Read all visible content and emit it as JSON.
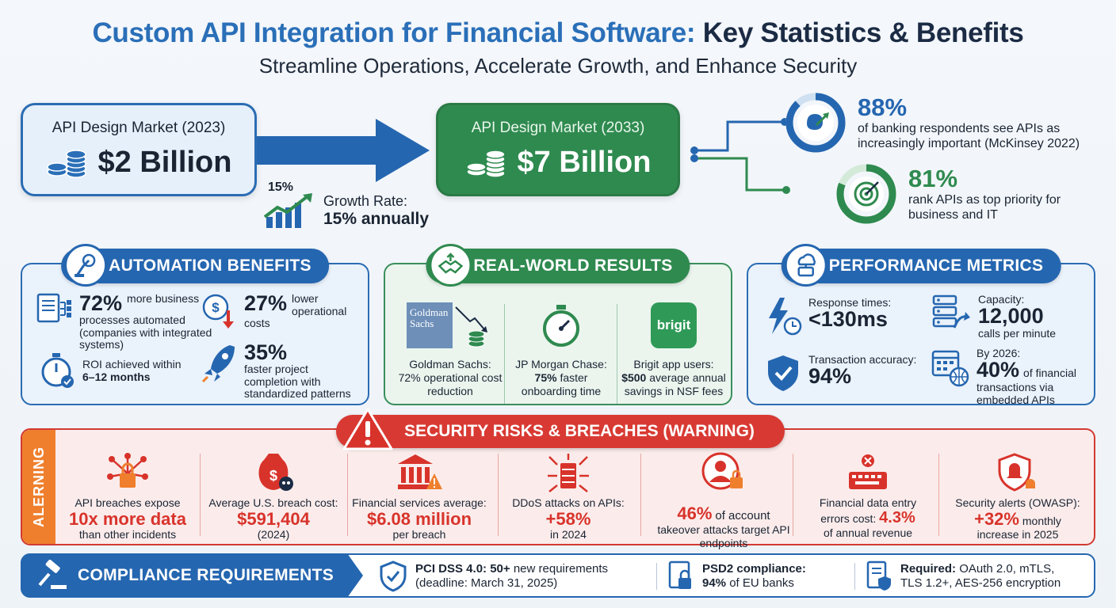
{
  "header": {
    "title_part1": "Custom API Integration for Financial Software:",
    "title_part2": "Key Statistics & Benefits",
    "subtitle": "Streamline Operations, Accelerate Growth, and Enhance Security"
  },
  "market": {
    "left_label": "API Design Market (2023)",
    "left_value": "$2 Billion",
    "right_label": "API Design Market (2033)",
    "right_value": "$7 Billion",
    "growth_pct": "15%",
    "growth_label": "Growth Rate:",
    "growth_value": "15% annually"
  },
  "ring_stats": [
    {
      "value": "88%",
      "desc": "of banking respondents see APIs as increasingly important (McKinsey 2022)",
      "fraction": 0.88
    },
    {
      "value": "81%",
      "desc": "rank APIs as top priority for business and IT",
      "fraction": 0.81
    }
  ],
  "automation": {
    "title": "AUTOMATION BENEFITS",
    "m1_value": "72%",
    "m1_text_a": "more business",
    "m1_text_b": "processes automated (companies with integrated systems)",
    "m2_value": "27%",
    "m2_text_a": "lower operational",
    "m2_text_b": "costs",
    "m3_text": "ROI achieved within",
    "m3_value": "6–12 months",
    "m4_value": "35%",
    "m4_text": "faster project completion with standardized patterns"
  },
  "real_world": {
    "title": "REAL-WORLD RESULTS",
    "goldman_logo": "Goldman Sachs",
    "col1_a": "Goldman Sachs:",
    "col1_b": "72% operational cost reduction",
    "col2_a": "JP Morgan Chase:",
    "col2_b": "75%",
    "col2_c": "faster onboarding time",
    "brigit_logo": "brigit",
    "col3_a": "Brigit app users:",
    "col3_b": "$500",
    "col3_c": "average annual savings in NSF fees"
  },
  "performance": {
    "title": "PERFORMANCE METRICS",
    "p1_label": "Response times:",
    "p1_value": "<130ms",
    "p2_label": "Capacity:",
    "p2_value": "12,000",
    "p2_sub": "calls per minute",
    "p3_label": "Transaction accuracy:",
    "p3_value": "94%",
    "p4_label": "By 2026:",
    "p4_value": "40%",
    "p4_sub_a": "of financial",
    "p4_sub_b": "transactions via embedded APIs"
  },
  "security": {
    "title": "SECURITY RISKS & BREACHES (WARNING)",
    "side_label": "ALERNING",
    "items": [
      {
        "top": "API breaches expose",
        "big": "10x more data",
        "bottom": "than other incidents"
      },
      {
        "top": "Average U.S. breach cost:",
        "big": "$591,404",
        "bottom": "(2024)"
      },
      {
        "top": "Financial services average:",
        "big": "$6.08 million",
        "bottom": "per breach"
      },
      {
        "top": "DDoS attacks on APIs:",
        "big": "+58%",
        "bottom": "in 2024"
      },
      {
        "big": "46%",
        "top_inline": "of account",
        "bottom": "takeover attacks target API endpoints"
      },
      {
        "top": "Financial data entry",
        "mid": "errors cost:",
        "big": "4.3%",
        "bottom": "of annual revenue"
      },
      {
        "top": "Security alerts (OWASP):",
        "big": "+32%",
        "mid": "monthly",
        "bottom": "increase in 2025"
      }
    ]
  },
  "compliance": {
    "title": "COMPLIANCE REQUIREMENTS",
    "c1_bold": "PCI DSS 4.0: 50+",
    "c1_text": "new requirements",
    "c1_line2": "(deadline: March 31, 2025)",
    "c2_bold": "PSD2 compliance:",
    "c2_bold2": "94%",
    "c2_text": "of EU banks",
    "c3_bold": "Required:",
    "c3_text": "OAuth 2.0, mTLS,",
    "c3_line2": "TLS 1.2+, AES-256 encryption"
  },
  "colors": {
    "blue": "#2566b0",
    "green": "#2f8a4f",
    "red": "#d8332b",
    "orange": "#ef7f2d"
  }
}
